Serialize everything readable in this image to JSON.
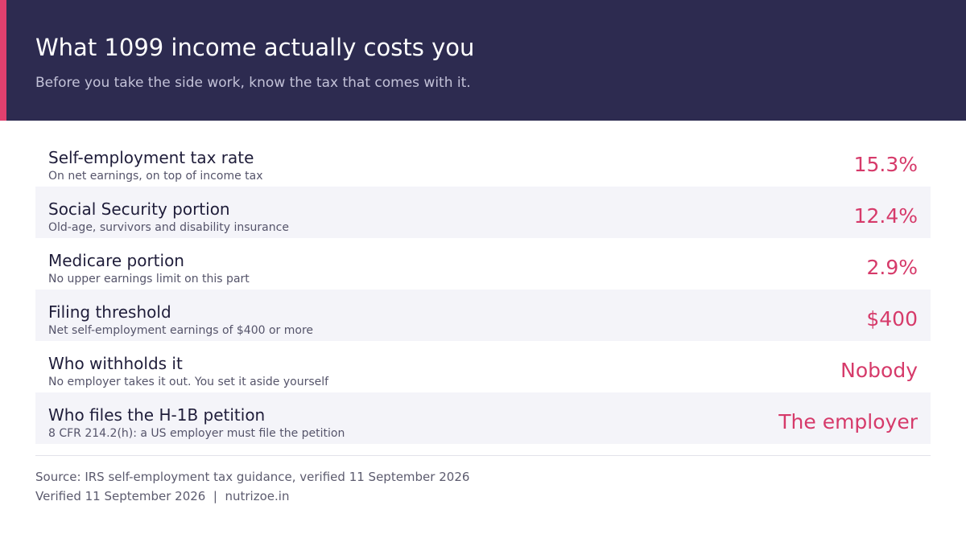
{
  "header": {
    "title": "What 1099 income actually costs you",
    "subtitle": "Before you take the side work, know the tax that comes with it."
  },
  "rows": [
    {
      "label": "Self-employment tax rate",
      "note": "On net earnings, on top of income tax",
      "value": "15.3%"
    },
    {
      "label": "Social Security portion",
      "note": "Old-age, survivors and disability insurance",
      "value": "12.4%"
    },
    {
      "label": "Medicare portion",
      "note": "No upper earnings limit on this part",
      "value": "2.9%"
    },
    {
      "label": "Filing threshold",
      "note": "Net self-employment earnings of $400 or more",
      "value": "$400"
    },
    {
      "label": "Who withholds it",
      "note": "No employer takes it out. You set it aside yourself",
      "value": "Nobody"
    },
    {
      "label": "Who files the H-1B petition",
      "note": "8 CFR 214.2(h): a US employer must file the petition",
      "value": "The employer"
    }
  ],
  "footer": {
    "source": "Source: IRS self-employment tax guidance, verified 11 September 2026",
    "verified": "Verified 11 September 2026",
    "separator": "|",
    "site": "nutrizoe.in"
  }
}
